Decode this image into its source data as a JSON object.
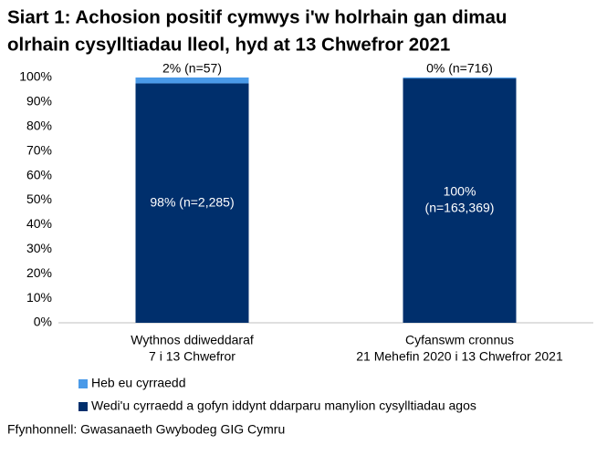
{
  "chart_data": {
    "type": "stacked_bar",
    "title": [
      "Siart 1: Achosion positif cymwys i'w holrhain gan dimau",
      "olrhain cysylltiadau lleol, hyd at 13 Chwefror 2021"
    ],
    "categories": [
      [
        "Wythnos ddiweddaraf",
        "7 i 13 Chwefror"
      ],
      [
        "Cyfanswm cronnus",
        "21 Mehefin 2020 i 13 Chwefror 2021"
      ]
    ],
    "series": [
      {
        "name": "Wedi'u cyrraedd a gofyn iddynt ddarparu manylion cysylltiadau agos",
        "color": "#002f6c",
        "values": [
          97.6,
          99.6
        ],
        "value_labels": [
          [
            "98% (n=2,285)"
          ],
          [
            "100%",
            "(n=163,369)"
          ]
        ]
      },
      {
        "name": "Heb eu cyrraedd",
        "color": "#4a9ae8",
        "values": [
          2.4,
          0.4
        ],
        "value_labels": [
          [
            "2% (n=57)"
          ],
          [
            "0% (n=716)"
          ]
        ]
      }
    ],
    "ylim": [
      0,
      100
    ],
    "yticks": [
      {
        "value": 0,
        "label": "0%"
      },
      {
        "value": 10,
        "label": "10%"
      },
      {
        "value": 20,
        "label": "20%"
      },
      {
        "value": 30,
        "label": "30%"
      },
      {
        "value": 40,
        "label": "40%"
      },
      {
        "value": 50,
        "label": "50%"
      },
      {
        "value": 60,
        "label": "60%"
      },
      {
        "value": 70,
        "label": "70%"
      },
      {
        "value": 80,
        "label": "80%"
      },
      {
        "value": 90,
        "label": "90%"
      },
      {
        "value": 100,
        "label": "100%"
      }
    ],
    "source": "Ffynhonnell: Gwasanaeth Gwybodeg GIG Cymru"
  }
}
